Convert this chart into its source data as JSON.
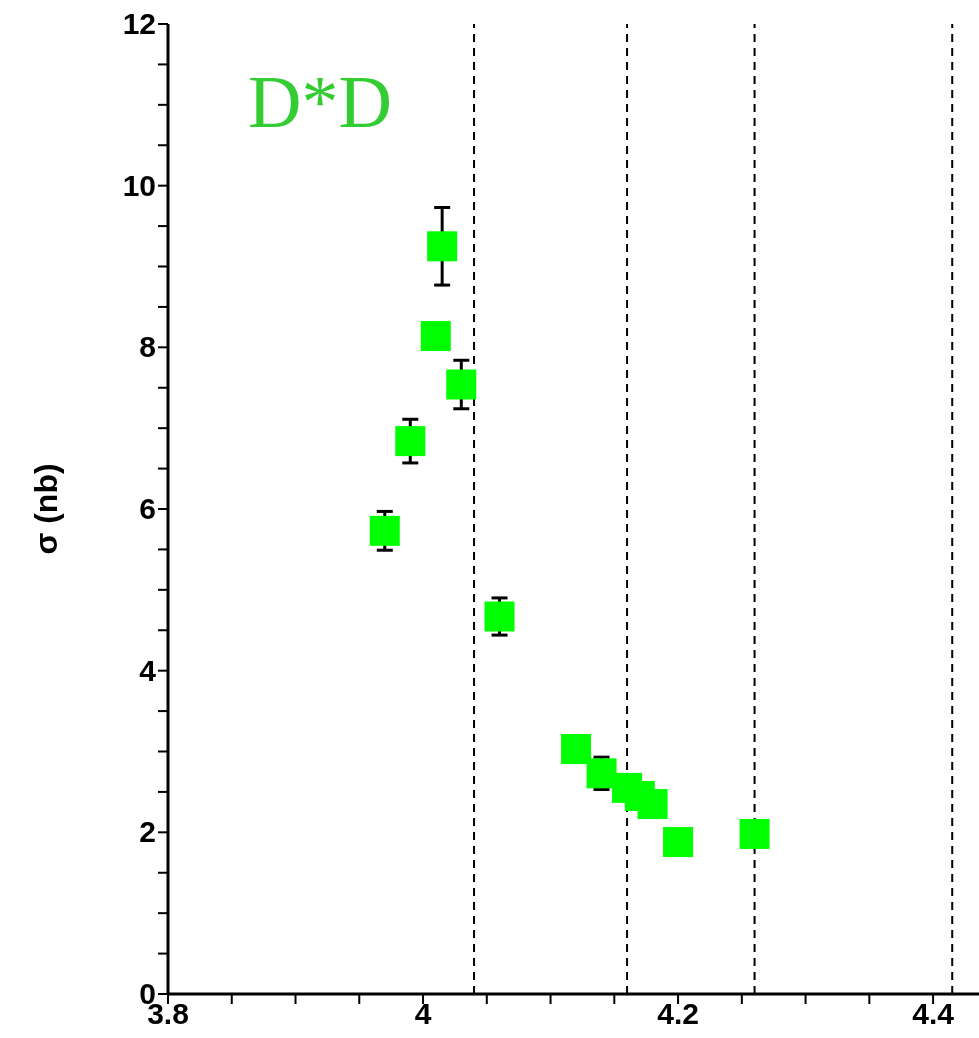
{
  "chart_data": {
    "type": "scatter",
    "ylabel": "σ (nb)",
    "annotations": [
      "D*D"
    ],
    "marker": "square",
    "grid": false,
    "xlim": [
      3.8,
      4.436
    ],
    "xticks": [
      3.8,
      {
        "value": 3.85,
        "label": null
      },
      {
        "value": 3.9,
        "label": null
      },
      {
        "value": 3.95,
        "label": null
      },
      4,
      {
        "value": 4.05,
        "label": null
      },
      {
        "value": 4.1,
        "label": null
      },
      {
        "value": 4.15,
        "label": null
      },
      4.2,
      {
        "value": 4.25,
        "label": null
      },
      {
        "value": 4.3,
        "label": null
      },
      {
        "value": 4.35,
        "label": null
      },
      4.4
    ],
    "ylim": [
      0,
      12
    ],
    "yticks": [
      0,
      {
        "value": 0.5,
        "label": null
      },
      {
        "value": 1,
        "label": null
      },
      {
        "value": 1.5,
        "label": null
      },
      2,
      {
        "value": 2.5,
        "label": null
      },
      {
        "value": 3,
        "label": null
      },
      {
        "value": 3.5,
        "label": null
      },
      4,
      {
        "value": 4.5,
        "label": null
      },
      {
        "value": 5,
        "label": null
      },
      {
        "value": 5.5,
        "label": null
      },
      6,
      {
        "value": 6.5,
        "label": null
      },
      {
        "value": 7,
        "label": null
      },
      {
        "value": 7.5,
        "label": null
      },
      8,
      {
        "value": 8.5,
        "label": null
      },
      {
        "value": 9,
        "label": null
      },
      {
        "value": 9.5,
        "label": null
      },
      10,
      {
        "value": 10.5,
        "label": null
      },
      {
        "value": 11,
        "label": null
      },
      {
        "value": 11.5,
        "label": null
      },
      12
    ],
    "ref_lines": [
      {
        "axis": "x",
        "value": 4.04,
        "line_style": "dashed",
        "color": "#000000"
      },
      {
        "axis": "x",
        "value": 4.16,
        "line_style": "dashed",
        "color": "#000000"
      },
      {
        "axis": "x",
        "value": 4.26,
        "line_style": "dashed",
        "color": "#000000"
      },
      {
        "axis": "x",
        "value": 4.415,
        "line_style": "dashed",
        "color": "#000000"
      }
    ],
    "series": [
      {
        "color": "#00ff00",
        "x": [
          3.97,
          3.99,
          4.01,
          4.015,
          4.03,
          4.06,
          4.12,
          4.14,
          4.16,
          4.17,
          4.18,
          4.2,
          4.26
        ],
        "values": [
          5.73,
          6.84,
          8.14,
          9.25,
          7.54,
          4.67,
          3.03,
          2.73,
          2.55,
          2.45,
          2.35,
          1.88,
          1.98
        ],
        "errors": [
          0.24,
          0.27,
          null,
          0.48,
          0.3,
          0.23,
          null,
          0.2,
          null,
          null,
          null,
          null,
          null
        ]
      }
    ]
  }
}
